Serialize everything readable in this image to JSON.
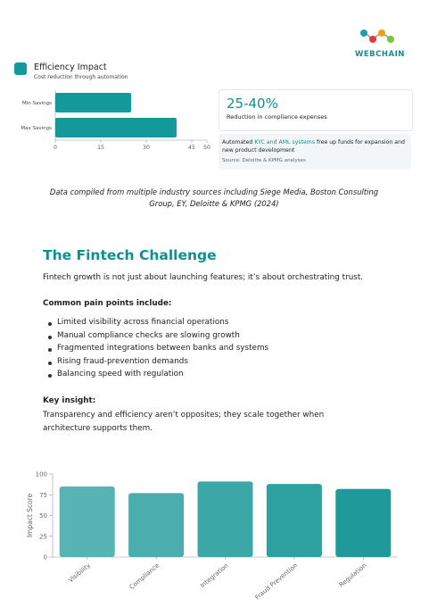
{
  "logo": {
    "text": "WEBCHAIN"
  },
  "efficiency": {
    "title": "Efficiency Impact",
    "subtitle": "Cost reduction through automation",
    "stat": {
      "value": "25-40%",
      "label": "Reduction in compliance expenses"
    },
    "note": {
      "before": "Automated ",
      "highlight": "KYC and AML systems",
      "after": " free up funds for expansion and new product development"
    },
    "source": "Source: Deloitte & KPMG analyses"
  },
  "caption": "Data compiled from multiple industry sources including Siege Media, Boston Consulting Group, EY, Deloitte & KPMG (2024)",
  "section": {
    "heading": "The Fintech Challenge",
    "intro": "Fintech growth is not just about launching features; it’s about orchestrating trust.",
    "list_heading": "Common pain points include:",
    "items": [
      "Limited visibility across financial operations",
      "Manual compliance checks are slowing growth",
      "Fragmented integrations between banks and systems",
      "Rising fraud-prevention demands",
      "Balancing speed with regulation"
    ],
    "insight_heading": "Key insight:",
    "insight": "Transparency and efficiency aren’t opposites; they scale together when architecture supports them."
  },
  "chart_data": [
    {
      "type": "hbar",
      "categories": [
        "Min Savings",
        "Max Savings"
      ],
      "values": [
        25,
        40
      ],
      "color": "#14999a",
      "xlim": [
        0,
        50
      ],
      "xticks": [
        0,
        15,
        30,
        45,
        50
      ]
    },
    {
      "type": "bar",
      "y_label": "Impact Score",
      "categories": [
        "Visibility",
        "Compliance",
        "Integration",
        "Fraud Prevention",
        "Regulation"
      ],
      "values": [
        85,
        77,
        91,
        88,
        82
      ],
      "colors": [
        "#56b4b4",
        "#4badad",
        "#3ba7a7",
        "#2da0a0",
        "#1f9999"
      ],
      "ylim": [
        0,
        100
      ],
      "yticks": [
        0,
        25,
        50,
        75,
        100
      ]
    }
  ]
}
